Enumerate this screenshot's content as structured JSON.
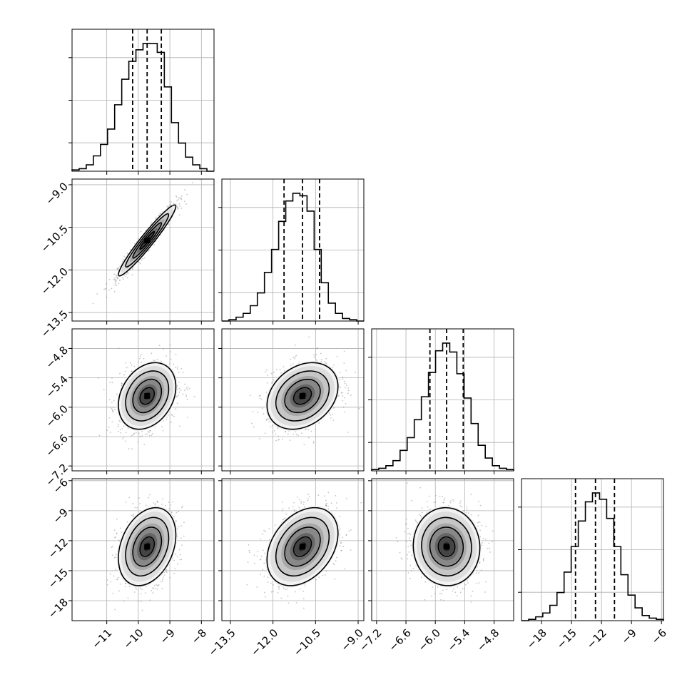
{
  "chart_data": {
    "type": "corner",
    "n_params": 4,
    "grid": true,
    "quantiles": [
      0.16,
      0.5,
      0.84
    ],
    "params": [
      {
        "range": [
          -12.1,
          -7.6
        ],
        "ticks": [
          -11,
          -10,
          -9,
          -8
        ],
        "tick_labels": [
          "−11",
          "−10",
          "−9",
          "−8"
        ],
        "quantile_values": [
          -10.18,
          -9.72,
          -9.27
        ],
        "hist_bins": [
          -12.1,
          -11.875,
          -11.65,
          -11.425,
          -11.2,
          -10.975,
          -10.75,
          -10.525,
          -10.3,
          -10.075,
          -9.85,
          -9.625,
          -9.4,
          -9.175,
          -8.95,
          -8.725,
          -8.5,
          -8.275,
          -8.05,
          -7.825,
          -7.6
        ],
        "hist_counts": [
          0.01,
          0.02,
          0.05,
          0.12,
          0.21,
          0.33,
          0.52,
          0.72,
          0.86,
          0.95,
          1.0,
          1.0,
          0.93,
          0.66,
          0.38,
          0.22,
          0.11,
          0.05,
          0.02,
          0.0
        ]
      },
      {
        "range": [
          -13.8,
          -8.8
        ],
        "ticks": [
          -13.5,
          -12.0,
          -10.5,
          -9.0
        ],
        "tick_labels": [
          "−13.5",
          "−12.0",
          "−10.5",
          "−9.0"
        ],
        "quantile_values": [
          -11.61,
          -10.96,
          -10.36
        ],
        "hist_bins": [
          -13.8,
          -13.55,
          -13.3,
          -13.05,
          -12.8,
          -12.55,
          -12.3,
          -12.05,
          -11.8,
          -11.55,
          -11.3,
          -11.05,
          -10.8,
          -10.55,
          -10.3,
          -10.05,
          -9.8,
          -9.55,
          -9.3,
          -9.05,
          -8.8
        ],
        "hist_counts": [
          0.0,
          0.01,
          0.03,
          0.06,
          0.12,
          0.22,
          0.38,
          0.56,
          0.78,
          0.94,
          1.0,
          0.98,
          0.86,
          0.56,
          0.3,
          0.14,
          0.06,
          0.02,
          0.01,
          0.0
        ]
      },
      {
        "range": [
          -7.3,
          -4.4
        ],
        "ticks": [
          -7.2,
          -6.6,
          -6.0,
          -5.4,
          -4.8
        ],
        "tick_labels": [
          "−7.2",
          "−6.6",
          "−6.0",
          "−5.4",
          "−4.8"
        ],
        "quantile_values": [
          -6.11,
          -5.77,
          -5.43
        ],
        "hist_bins": [
          -7.3,
          -7.155,
          -7.01,
          -6.865,
          -6.72,
          -6.575,
          -6.43,
          -6.285,
          -6.14,
          -5.995,
          -5.85,
          -5.705,
          -5.56,
          -5.415,
          -5.27,
          -5.125,
          -4.98,
          -4.835,
          -4.69,
          -4.545,
          -4.4
        ],
        "hist_counts": [
          0.01,
          0.02,
          0.04,
          0.08,
          0.16,
          0.26,
          0.4,
          0.58,
          0.77,
          0.94,
          1.0,
          0.93,
          0.76,
          0.57,
          0.37,
          0.2,
          0.1,
          0.04,
          0.02,
          0.01
        ]
      },
      {
        "range": [
          -20.0,
          -5.8
        ],
        "ticks": [
          -18,
          -15,
          -12,
          -9,
          -6
        ],
        "tick_labels": [
          "−18",
          "−15",
          "−12",
          "−9",
          "−6"
        ],
        "quantile_values": [
          -14.6,
          -12.6,
          -10.7
        ],
        "hist_bins": [
          -20.0,
          -19.29,
          -18.58,
          -17.87,
          -17.16,
          -16.45,
          -15.74,
          -15.03,
          -14.32,
          -13.61,
          -12.9,
          -12.19,
          -11.48,
          -10.77,
          -10.06,
          -9.35,
          -8.64,
          -7.93,
          -7.22,
          -6.51,
          -5.8
        ],
        "hist_counts": [
          0.0,
          0.01,
          0.03,
          0.06,
          0.12,
          0.22,
          0.38,
          0.58,
          0.78,
          0.93,
          1.0,
          0.95,
          0.8,
          0.58,
          0.36,
          0.2,
          0.1,
          0.04,
          0.02,
          0.01
        ]
      }
    ],
    "correlations": [
      [
        1.0,
        0.96,
        0.28,
        0.3
      ],
      [
        0.96,
        1.0,
        0.28,
        0.34
      ],
      [
        0.28,
        0.28,
        1.0,
        -0.03
      ],
      [
        0.3,
        0.34,
        -0.03,
        1.0
      ]
    ],
    "contour_levels_sigma": [
      0.5,
      1.0,
      1.5,
      2.0
    ],
    "colors": {
      "line": "#000000",
      "grid": "#b0b0b0",
      "scatter": "#8c8c8c",
      "background": "#ffffff"
    }
  }
}
